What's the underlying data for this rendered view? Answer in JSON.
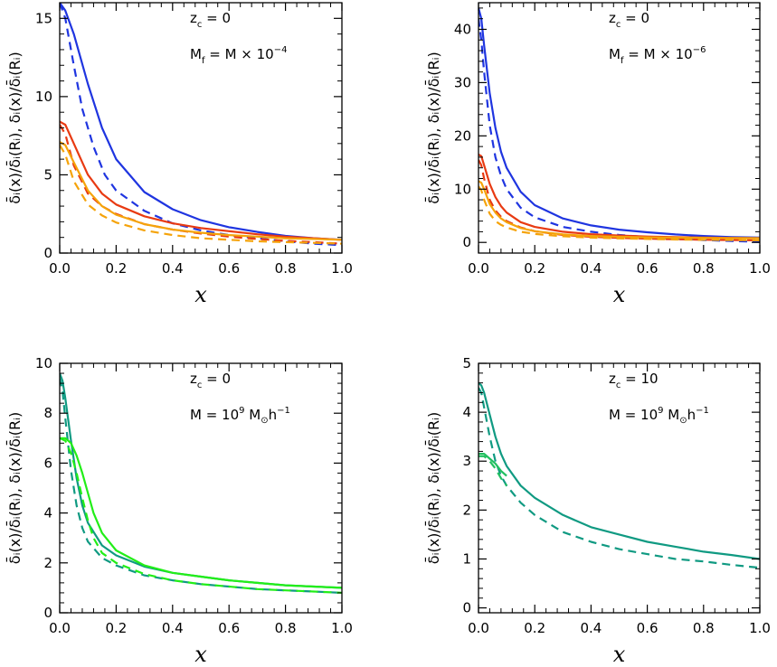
{
  "chart_data": [
    {
      "type": "line",
      "xlabel": "x",
      "ylabel": "δ̄ᵢ(x)/δ̄ᵢ(Rᵢ),  δᵢ(x)/δ̄ᵢ(Rᵢ)",
      "xlim": [
        0,
        1
      ],
      "ylim": [
        0,
        16
      ],
      "xticks": [
        "0.0",
        "0.2",
        "0.4",
        "0.6",
        "0.8",
        "1.0"
      ],
      "yticks": [
        "0",
        "5",
        "10",
        "15"
      ],
      "annotation": {
        "line1": {
          "var": "z",
          "sub": "c",
          "rest": " = 0"
        },
        "line2": {
          "var": "M",
          "sub": "f",
          "rest": " = M × 10",
          "sup": "−4"
        }
      },
      "series": [
        {
          "name": "blue solid",
          "color": "#1f35e0",
          "style": "solid",
          "x": [
            0,
            0.02,
            0.05,
            0.1,
            0.15,
            0.2,
            0.3,
            0.4,
            0.5,
            0.6,
            0.7,
            0.8,
            0.9,
            1.0
          ],
          "y": [
            16,
            15.5,
            14.0,
            10.8,
            8.0,
            6.0,
            3.9,
            2.8,
            2.1,
            1.65,
            1.35,
            1.1,
            0.95,
            0.85
          ]
        },
        {
          "name": "blue dashed",
          "color": "#1f35e0",
          "style": "dashed",
          "x": [
            0,
            0.02,
            0.05,
            0.08,
            0.12,
            0.16,
            0.2,
            0.3,
            0.4,
            0.5,
            0.6,
            0.7,
            0.8,
            0.9,
            1.0
          ],
          "y": [
            16,
            15.0,
            12.0,
            9.2,
            6.8,
            5.0,
            4.0,
            2.7,
            1.9,
            1.45,
            1.15,
            0.95,
            0.75,
            0.6,
            0.5
          ]
        },
        {
          "name": "red solid",
          "color": "#e83a12",
          "style": "solid",
          "x": [
            0,
            0.02,
            0.05,
            0.1,
            0.15,
            0.2,
            0.3,
            0.4,
            0.5,
            0.6,
            0.7,
            0.8,
            0.9,
            1.0
          ],
          "y": [
            8.4,
            8.2,
            7.0,
            5.0,
            3.8,
            3.1,
            2.35,
            1.9,
            1.6,
            1.4,
            1.2,
            1.05,
            0.95,
            0.85
          ]
        },
        {
          "name": "red dashed",
          "color": "#e83a12",
          "style": "dashed",
          "x": [
            0,
            0.02,
            0.05,
            0.1,
            0.15,
            0.2,
            0.3,
            0.4,
            0.5,
            0.6,
            0.7,
            0.8,
            0.9,
            1.0
          ],
          "y": [
            8.2,
            7.6,
            5.6,
            3.8,
            3.0,
            2.5,
            1.85,
            1.5,
            1.25,
            1.05,
            0.9,
            0.78,
            0.7,
            0.6
          ]
        },
        {
          "name": "orange solid",
          "color": "#f5a30a",
          "style": "solid",
          "x": [
            0,
            0.02,
            0.05,
            0.1,
            0.15,
            0.2,
            0.3,
            0.4,
            0.5,
            0.6,
            0.7,
            0.8,
            0.9,
            1.0
          ],
          "y": [
            7.1,
            6.9,
            5.8,
            4.0,
            3.0,
            2.45,
            1.85,
            1.5,
            1.3,
            1.15,
            1.05,
            0.95,
            0.9,
            0.85
          ]
        },
        {
          "name": "orange dashed",
          "color": "#f5a30a",
          "style": "dashed",
          "x": [
            0,
            0.02,
            0.05,
            0.1,
            0.15,
            0.2,
            0.3,
            0.4,
            0.5,
            0.6,
            0.7,
            0.8,
            0.9,
            1.0
          ],
          "y": [
            6.9,
            6.3,
            4.6,
            3.1,
            2.4,
            1.95,
            1.45,
            1.15,
            0.95,
            0.85,
            0.75,
            0.7,
            0.65,
            0.6
          ]
        }
      ]
    },
    {
      "type": "line",
      "xlabel": "x",
      "ylabel": "δ̄ᵢ(x)/δ̄ᵢ(Rᵢ),  δᵢ(x)/δ̄ᵢ(Rᵢ)",
      "xlim": [
        0,
        1
      ],
      "ylim": [
        -2,
        45
      ],
      "xticks": [
        "0.0",
        "0.2",
        "0.4",
        "0.6",
        "0.8",
        "1.0"
      ],
      "yticks": [
        "0",
        "10",
        "20",
        "30",
        "40"
      ],
      "annotation": {
        "line1": {
          "var": "z",
          "sub": "c",
          "rest": " = 0"
        },
        "line2": {
          "var": "M",
          "sub": "f",
          "rest": " = M × 10",
          "sup": "−6"
        }
      },
      "series": [
        {
          "name": "blue solid",
          "color": "#1f35e0",
          "style": "solid",
          "x": [
            0,
            0.01,
            0.02,
            0.04,
            0.06,
            0.08,
            0.1,
            0.15,
            0.2,
            0.3,
            0.4,
            0.5,
            0.6,
            0.7,
            0.8,
            0.9,
            1.0
          ],
          "y": [
            44,
            42,
            37,
            28,
            21.5,
            17,
            14,
            9.5,
            7.0,
            4.5,
            3.2,
            2.4,
            1.9,
            1.5,
            1.2,
            1.0,
            0.9
          ]
        },
        {
          "name": "blue dashed",
          "color": "#1f35e0",
          "style": "dashed",
          "x": [
            0,
            0.01,
            0.02,
            0.04,
            0.06,
            0.08,
            0.1,
            0.15,
            0.2,
            0.3,
            0.4,
            0.5,
            0.6,
            0.7,
            0.8,
            0.9,
            1.0
          ],
          "y": [
            42,
            38,
            32,
            22,
            16,
            12.5,
            10,
            6.5,
            4.7,
            2.9,
            2.0,
            1.4,
            1.0,
            0.7,
            0.45,
            0.25,
            0.1
          ]
        },
        {
          "name": "red solid",
          "color": "#e83a12",
          "style": "solid",
          "x": [
            0,
            0.01,
            0.02,
            0.04,
            0.06,
            0.08,
            0.1,
            0.15,
            0.2,
            0.3,
            0.4,
            0.5,
            0.6,
            0.7,
            0.8,
            0.9,
            1.0
          ],
          "y": [
            16.5,
            16.2,
            14.5,
            11.0,
            8.5,
            6.8,
            5.6,
            3.8,
            2.9,
            2.0,
            1.55,
            1.3,
            1.1,
            1.0,
            0.9,
            0.85,
            0.8
          ]
        },
        {
          "name": "red dashed",
          "color": "#e83a12",
          "style": "dashed",
          "x": [
            0,
            0.01,
            0.02,
            0.04,
            0.06,
            0.08,
            0.1,
            0.15,
            0.2,
            0.3,
            0.4,
            0.5,
            0.6,
            0.7,
            0.8,
            0.9,
            1.0
          ],
          "y": [
            15.5,
            14.5,
            12.0,
            8.0,
            6.0,
            4.8,
            4.0,
            2.8,
            2.1,
            1.4,
            1.05,
            0.85,
            0.7,
            0.6,
            0.5,
            0.45,
            0.4
          ]
        },
        {
          "name": "orange solid",
          "color": "#f5a30a",
          "style": "solid",
          "x": [
            0,
            0.01,
            0.02,
            0.04,
            0.06,
            0.08,
            0.1,
            0.15,
            0.2,
            0.3,
            0.4,
            0.5,
            0.6,
            0.7,
            0.8,
            0.9,
            1.0
          ],
          "y": [
            11.5,
            11.2,
            10.0,
            7.2,
            5.6,
            4.5,
            3.8,
            2.7,
            2.1,
            1.5,
            1.2,
            1.05,
            0.95,
            0.9,
            0.85,
            0.8,
            0.8
          ]
        },
        {
          "name": "orange dashed",
          "color": "#f5a30a",
          "style": "dashed",
          "x": [
            0,
            0.01,
            0.02,
            0.04,
            0.06,
            0.08,
            0.1,
            0.15,
            0.2,
            0.3,
            0.4,
            0.5,
            0.6,
            0.7,
            0.8,
            0.9,
            1.0
          ],
          "y": [
            10.5,
            9.8,
            8.0,
            5.4,
            4.0,
            3.3,
            2.8,
            2.0,
            1.6,
            1.15,
            0.9,
            0.75,
            0.65,
            0.55,
            0.5,
            0.45,
            0.4
          ]
        }
      ]
    },
    {
      "type": "line",
      "xlabel": "x",
      "ylabel": "δ̄ᵢ(x)/δ̄ᵢ(Rᵢ),  δᵢ(x)/δ̄ᵢ(Rᵢ)",
      "xlim": [
        0,
        1
      ],
      "ylim": [
        0,
        10
      ],
      "xticks": [
        "0.0",
        "0.2",
        "0.4",
        "0.6",
        "0.8",
        "1.0"
      ],
      "yticks": [
        "0",
        "2",
        "4",
        "6",
        "8",
        "10"
      ],
      "annotation": {
        "line1": {
          "var": "z",
          "sub": "c",
          "rest": " = 0"
        },
        "line2": {
          "var": "M",
          "rest": " = 10",
          "sup": "9",
          "tail": " M",
          "tailsub": "⊙",
          "tail2": "h",
          "tailsup": "−1"
        }
      },
      "series": [
        {
          "name": "teal solid",
          "color": "#109a82",
          "style": "solid",
          "x": [
            0,
            0.01,
            0.02,
            0.04,
            0.06,
            0.08,
            0.1,
            0.15,
            0.2,
            0.3,
            0.4,
            0.5,
            0.6,
            0.7,
            0.8,
            0.9,
            1.0
          ],
          "y": [
            9.6,
            9.3,
            8.6,
            6.9,
            5.4,
            4.3,
            3.6,
            2.7,
            2.3,
            1.85,
            1.6,
            1.45,
            1.3,
            1.2,
            1.1,
            1.05,
            1.0
          ]
        },
        {
          "name": "teal dashed",
          "color": "#109a82",
          "style": "dashed",
          "x": [
            0,
            0.01,
            0.02,
            0.04,
            0.06,
            0.08,
            0.1,
            0.15,
            0.2,
            0.3,
            0.4,
            0.5,
            0.6,
            0.7,
            0.8,
            0.9,
            1.0
          ],
          "y": [
            9.4,
            8.9,
            7.8,
            5.7,
            4.3,
            3.4,
            2.85,
            2.2,
            1.9,
            1.5,
            1.3,
            1.15,
            1.05,
            0.95,
            0.9,
            0.85,
            0.8
          ]
        },
        {
          "name": "green solid",
          "color": "#22ee18",
          "style": "solid",
          "x": [
            0,
            0.02,
            0.04,
            0.06,
            0.08,
            0.1,
            0.12,
            0.15,
            0.2,
            0.3,
            0.4,
            0.5,
            0.6,
            0.7,
            0.8,
            0.9,
            1.0
          ],
          "y": [
            7.0,
            7.0,
            6.8,
            6.3,
            5.6,
            4.8,
            4.0,
            3.2,
            2.5,
            1.9,
            1.6,
            1.45,
            1.3,
            1.2,
            1.1,
            1.05,
            1.0
          ]
        },
        {
          "name": "green dashed",
          "color": "#22ee18",
          "style": "dashed",
          "x": [
            0,
            0.02,
            0.04,
            0.06,
            0.08,
            0.1,
            0.12,
            0.15,
            0.2,
            0.3,
            0.4,
            0.5,
            0.6,
            0.7,
            0.8,
            0.9,
            1.0
          ],
          "y": [
            7.0,
            6.9,
            6.4,
            5.6,
            4.6,
            3.7,
            3.0,
            2.4,
            2.0,
            1.55,
            1.3,
            1.15,
            1.05,
            0.95,
            0.9,
            0.85,
            0.8
          ]
        }
      ]
    },
    {
      "type": "line",
      "xlabel": "x",
      "ylabel": "δ̄ᵢ(x)/δ̄ᵢ(Rᵢ),  δᵢ(x)/δ̄ᵢ(Rᵢ)",
      "xlim": [
        0,
        1
      ],
      "ylim": [
        -0.1,
        5
      ],
      "xticks": [
        "0.0",
        "0.2",
        "0.4",
        "0.6",
        "0.8",
        "1.0"
      ],
      "yticks": [
        "0",
        "1",
        "2",
        "3",
        "4",
        "5"
      ],
      "annotation": {
        "line1": {
          "var": "z",
          "sub": "c",
          "rest": " = 10"
        },
        "line2": {
          "var": "M",
          "rest": " = 10",
          "sup": "9",
          "tail": " M",
          "tailsub": "⊙",
          "tail2": "h",
          "tailsup": "−1"
        }
      },
      "series": [
        {
          "name": "teal solid",
          "color": "#109a82",
          "style": "solid",
          "x": [
            0,
            0.01,
            0.02,
            0.04,
            0.06,
            0.08,
            0.1,
            0.15,
            0.2,
            0.3,
            0.4,
            0.5,
            0.6,
            0.7,
            0.8,
            0.9,
            1.0
          ],
          "y": [
            4.6,
            4.55,
            4.4,
            3.95,
            3.5,
            3.15,
            2.9,
            2.5,
            2.25,
            1.9,
            1.65,
            1.5,
            1.35,
            1.25,
            1.15,
            1.08,
            1.0
          ]
        },
        {
          "name": "teal dashed",
          "color": "#109a82",
          "style": "dashed",
          "x": [
            0,
            0.01,
            0.02,
            0.04,
            0.06,
            0.08,
            0.1,
            0.15,
            0.2,
            0.3,
            0.4,
            0.5,
            0.6,
            0.7,
            0.8,
            0.9,
            1.0
          ],
          "y": [
            4.5,
            4.4,
            4.1,
            3.5,
            3.0,
            2.7,
            2.5,
            2.15,
            1.9,
            1.55,
            1.35,
            1.2,
            1.1,
            1.0,
            0.95,
            0.88,
            0.82
          ]
        },
        {
          "name": "green solid",
          "color": "#22c060",
          "style": "solid",
          "x": [
            0,
            0.02,
            0.04,
            0.06,
            0.08,
            0.1
          ],
          "y": [
            3.15,
            3.15,
            3.05,
            2.95,
            2.8,
            2.7
          ]
        },
        {
          "name": "green dashed",
          "color": "#22c060",
          "style": "dashed",
          "x": [
            0,
            0.02,
            0.04,
            0.06,
            0.08,
            0.1
          ],
          "y": [
            3.1,
            3.1,
            3.0,
            2.85,
            2.65,
            2.5
          ]
        }
      ]
    }
  ]
}
